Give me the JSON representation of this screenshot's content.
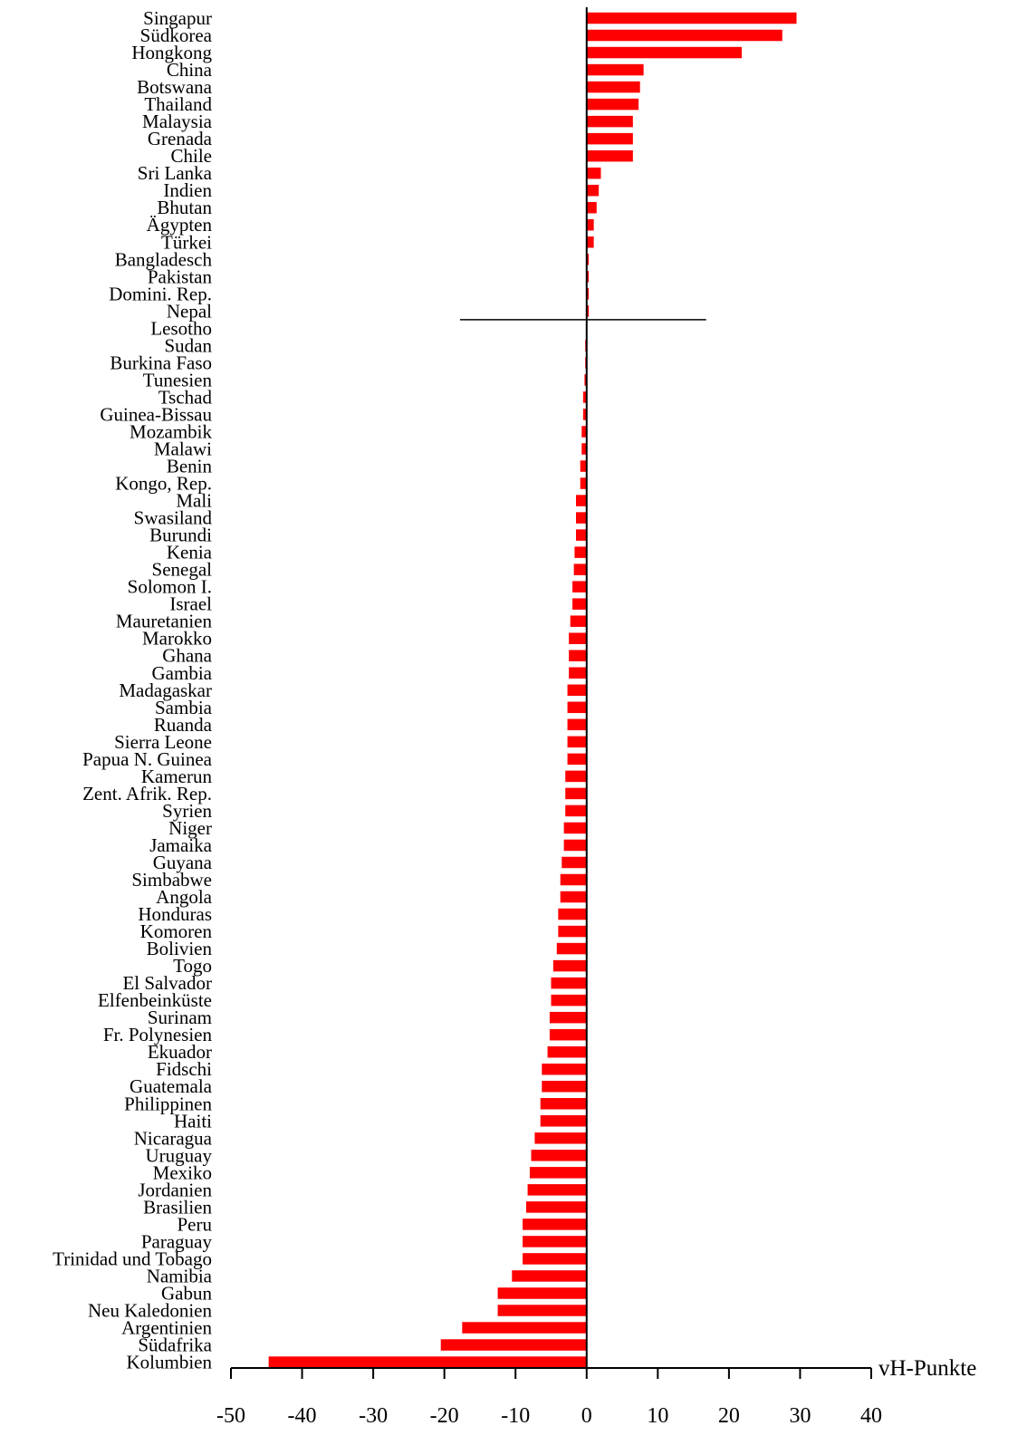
{
  "chart_data": {
    "type": "bar",
    "orientation": "horizontal",
    "xlabel": "vH-Punkte",
    "xlim": [
      -50,
      40
    ],
    "xticks": [
      -50,
      -40,
      -30,
      -20,
      -10,
      0,
      10,
      20,
      30,
      40
    ],
    "bar_color": "#ff0000",
    "grid": false,
    "categories": [
      "Singapur",
      "Südkorea",
      "Hongkong",
      "China",
      "Botswana",
      "Thailand",
      "Malaysia",
      "Grenada",
      "Chile",
      "Sri Lanka",
      "Indien",
      "Bhutan",
      "Ägypten",
      "Türkei",
      "Bangladesch",
      "Pakistan",
      "Domini. Rep.",
      "Nepal",
      "Lesotho",
      "Sudan",
      "Burkina Faso",
      "Tunesien",
      "Tschad",
      "Guinea-Bissau",
      "Mozambik",
      "Malawi",
      "Benin",
      "Kongo, Rep.",
      "Mali",
      "Swasiland",
      "Burundi",
      "Kenia",
      "Senegal",
      "Solomon I.",
      "Israel",
      "Mauretanien",
      "Marokko",
      "Ghana",
      "Gambia",
      "Madagaskar",
      "Sambia",
      "Ruanda",
      "Sierra Leone",
      "Papua N. Guinea",
      "Kamerun",
      "Zent. Afrik. Rep.",
      "Syrien",
      "Niger",
      "Jamaika",
      "Guyana",
      "Simbabwe",
      "Angola",
      "Honduras",
      "Komoren",
      "Bolivien",
      "Togo",
      "El Salvador",
      "Elfenbeinküste",
      "Surinam",
      "Fr. Polynesien",
      "Ekuador",
      "Fidschi",
      "Guatemala",
      "Philippinen",
      "Haiti",
      "Nicaragua",
      "Uruguay",
      "Mexiko",
      "Jordanien",
      "Brasilien",
      "Peru",
      "Paraguay",
      "Trinidad und Tobago",
      "Namibia",
      "Gabun",
      "Neu Kaledonien",
      "Argentinien",
      "Südafrika",
      "Kolumbien"
    ],
    "values": [
      29.5,
      27.5,
      21.8,
      8.0,
      7.5,
      7.3,
      6.5,
      6.5,
      6.5,
      2.0,
      1.7,
      1.4,
      1.0,
      1.0,
      0.3,
      0.3,
      0.3,
      0.3,
      0.0,
      -0.2,
      -0.2,
      -0.3,
      -0.5,
      -0.5,
      -0.7,
      -0.7,
      -0.9,
      -0.9,
      -1.5,
      -1.5,
      -1.5,
      -1.7,
      -1.8,
      -2.0,
      -2.0,
      -2.3,
      -2.5,
      -2.5,
      -2.5,
      -2.7,
      -2.7,
      -2.7,
      -2.7,
      -2.7,
      -3.0,
      -3.0,
      -3.0,
      -3.2,
      -3.2,
      -3.5,
      -3.7,
      -3.7,
      -4.0,
      -4.0,
      -4.2,
      -4.7,
      -5.0,
      -5.0,
      -5.2,
      -5.2,
      -5.5,
      -6.3,
      -6.3,
      -6.5,
      -6.5,
      -7.3,
      -7.8,
      -8.0,
      -8.3,
      -8.5,
      -9.0,
      -9.0,
      -9.0,
      -10.5,
      -12.5,
      -12.5,
      -17.5,
      -20.5,
      -44.7
    ]
  }
}
